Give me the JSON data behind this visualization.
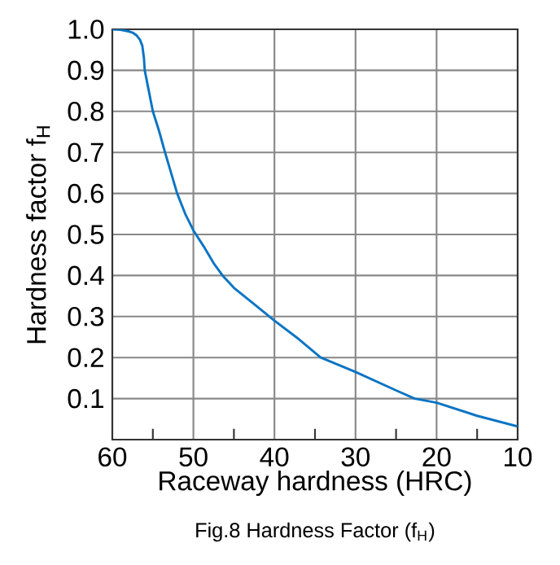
{
  "chart_data": {
    "type": "line",
    "xlabel": "Raceway hardness (HRC)",
    "ylabel": "Hardness factor f$_{H}$",
    "annotations": [
      "Fig.8 Hardness Factor (f$_{H}$)"
    ],
    "xlim": [
      60,
      10
    ],
    "ylim": [
      0,
      1.0
    ],
    "xticks": [
      60,
      {
        "value": 55,
        "label": null
      },
      50,
      {
        "value": 45,
        "label": null
      },
      40,
      {
        "value": 35,
        "label": null
      },
      30,
      {
        "value": 25,
        "label": null
      },
      20,
      {
        "value": 15,
        "label": null
      },
      10
    ],
    "yticks": [
      0.1,
      0.2,
      0.3,
      0.4,
      0.5,
      0.6,
      0.7,
      0.8,
      0.9,
      {
        "value": 1.0,
        "label": "1.0"
      }
    ],
    "grid": true,
    "marker": "none",
    "line_style": "solid",
    "series": [
      {
        "color": "#0a74c4",
        "x": [
          60,
          59,
          58,
          57.5,
          57,
          56.6,
          56.3,
          56.1,
          56,
          55.5,
          55,
          54.2,
          53.5,
          52,
          51,
          50,
          48.7,
          47.5,
          46.4,
          45,
          42.5,
          40,
          37,
          34.3,
          30,
          25,
          22.7,
          20,
          15,
          10
        ],
        "values": [
          1.0,
          0.999,
          0.995,
          0.992,
          0.985,
          0.975,
          0.96,
          0.93,
          0.9,
          0.85,
          0.8,
          0.75,
          0.7,
          0.6,
          0.55,
          0.51,
          0.47,
          0.43,
          0.4,
          0.37,
          0.33,
          0.29,
          0.245,
          0.2,
          0.165,
          0.12,
          0.1,
          0.09,
          0.058,
          0.032
        ]
      }
    ]
  }
}
